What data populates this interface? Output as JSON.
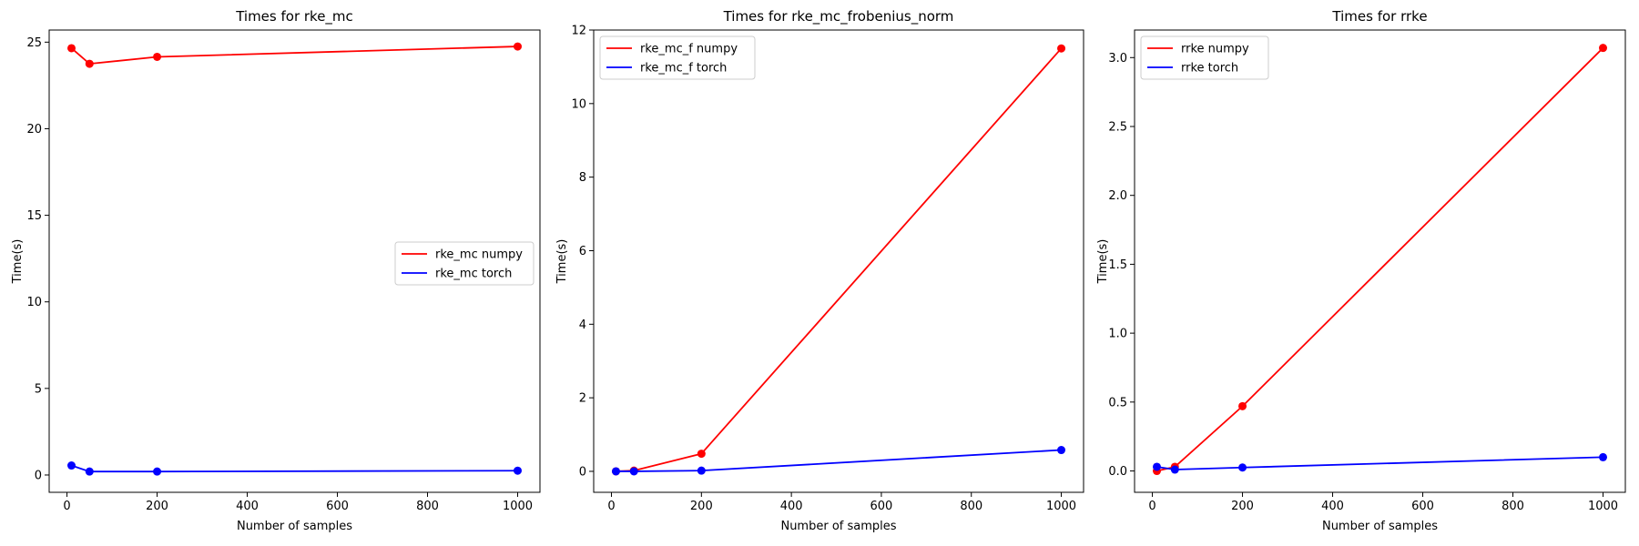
{
  "chart_data": [
    {
      "type": "line",
      "title": "Times for rke_mc",
      "xlabel": "Number of samples",
      "ylabel": "Time(s)",
      "xlim": [
        -39.5,
        1049.5
      ],
      "ylim": [
        -1.0,
        25.7
      ],
      "xticks": [
        0,
        200,
        400,
        600,
        800,
        1000
      ],
      "yticks": [
        0,
        5,
        10,
        15,
        20,
        25
      ],
      "ytick_labels": [
        "0",
        "5",
        "10",
        "15",
        "20",
        "25"
      ],
      "legend": "center-right",
      "grid": false,
      "x": [
        10,
        50,
        200,
        1000
      ],
      "series": [
        {
          "name": "rke_mc numpy",
          "color": "#ff0000",
          "values": [
            24.65,
            23.75,
            24.15,
            24.75
          ]
        },
        {
          "name": "rke_mc torch",
          "color": "#0000ff",
          "values": [
            0.55,
            0.2,
            0.2,
            0.25
          ]
        }
      ]
    },
    {
      "type": "line",
      "title": "Times for rke_mc_frobenius_norm",
      "xlabel": "Number of samples",
      "ylabel": "Time(s)",
      "xlim": [
        -39.5,
        1049.5
      ],
      "ylim": [
        -0.57,
        12.0
      ],
      "xticks": [
        0,
        200,
        400,
        600,
        800,
        1000
      ],
      "yticks": [
        0,
        2,
        4,
        6,
        8,
        10,
        12
      ],
      "ytick_labels": [
        "0",
        "2",
        "4",
        "6",
        "8",
        "10",
        "12"
      ],
      "legend": "top-left",
      "grid": false,
      "x": [
        10,
        50,
        200,
        1000
      ],
      "series": [
        {
          "name": "rke_mc_f numpy",
          "color": "#ff0000",
          "values": [
            0.0,
            0.02,
            0.48,
            11.5
          ]
        },
        {
          "name": "rke_mc_f torch",
          "color": "#0000ff",
          "values": [
            0.0,
            0.0,
            0.02,
            0.58
          ]
        }
      ]
    },
    {
      "type": "line",
      "title": "Times for rrke",
      "xlabel": "Number of samples",
      "ylabel": "Time(s)",
      "xlim": [
        -39.5,
        1049.5
      ],
      "ylim": [
        -0.155,
        3.2
      ],
      "xticks": [
        0,
        200,
        400,
        600,
        800,
        1000
      ],
      "yticks": [
        0.0,
        0.5,
        1.0,
        1.5,
        2.0,
        2.5,
        3.0
      ],
      "ytick_labels": [
        "0.0",
        "0.5",
        "1.0",
        "1.5",
        "2.0",
        "2.5",
        "3.0"
      ],
      "legend": "top-left",
      "grid": false,
      "x": [
        10,
        50,
        200,
        1000
      ],
      "series": [
        {
          "name": "rrke numpy",
          "color": "#ff0000",
          "values": [
            0.0,
            0.03,
            0.47,
            3.07
          ]
        },
        {
          "name": "rrke torch",
          "color": "#0000ff",
          "values": [
            0.03,
            0.01,
            0.025,
            0.1
          ]
        }
      ]
    }
  ]
}
